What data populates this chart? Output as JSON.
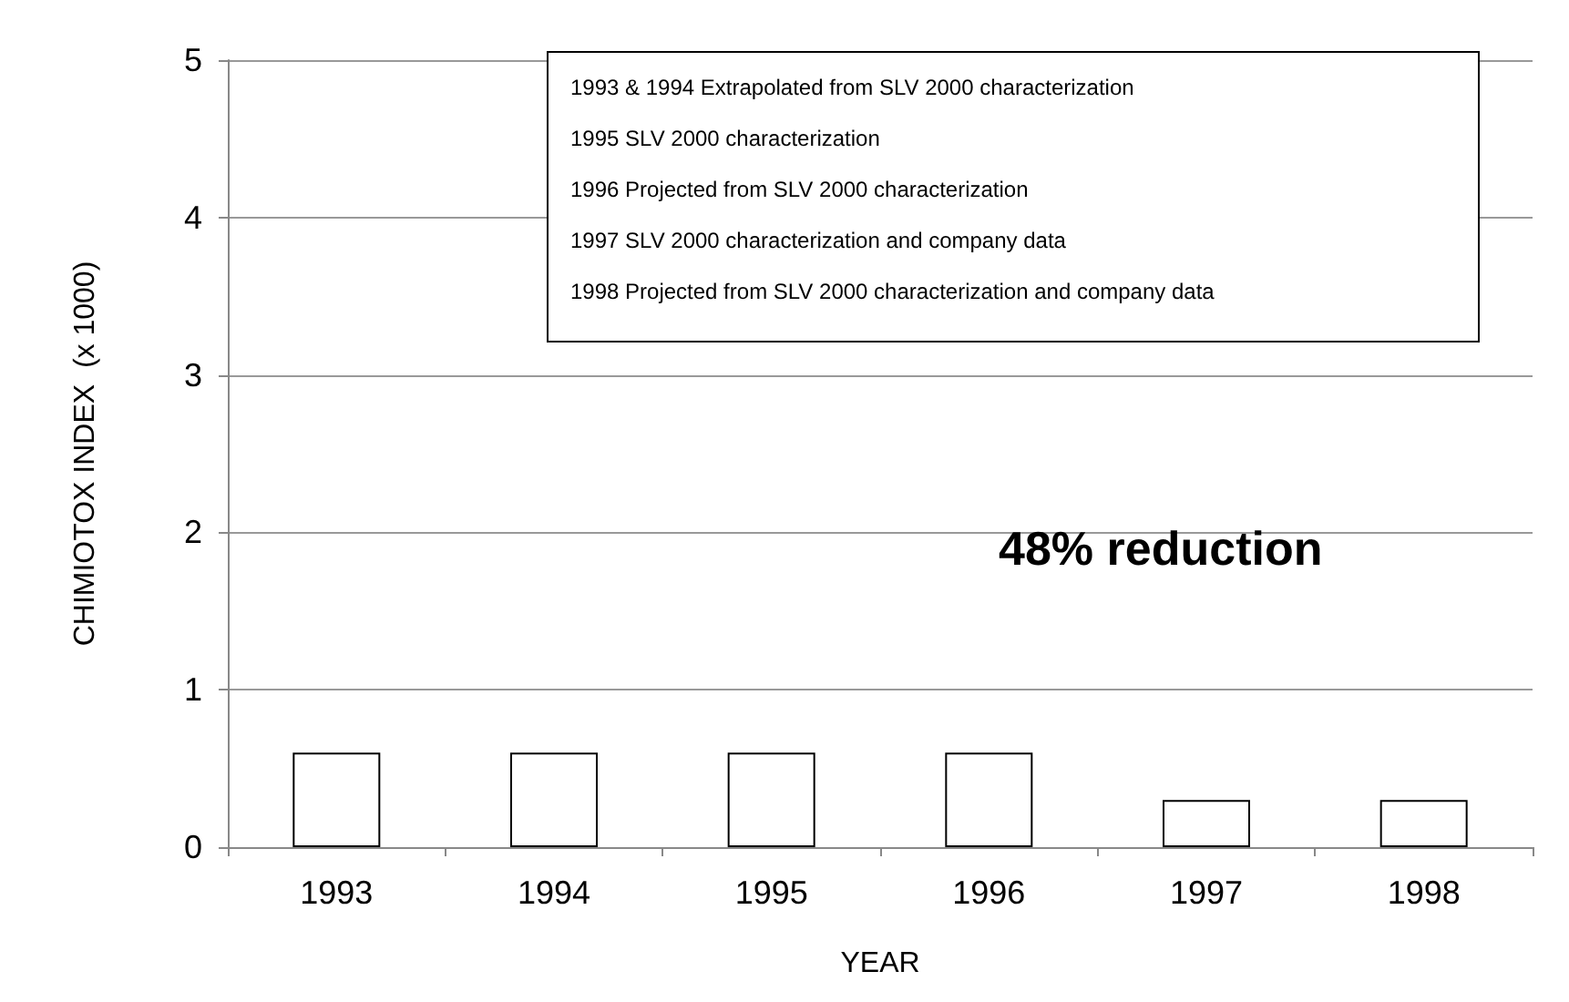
{
  "chart_data": {
    "type": "bar",
    "xlabel": "YEAR",
    "ylabel": "CHIMIOTOX INDEX  (x 1000)",
    "categories": [
      "1993",
      "1994",
      "1995",
      "1996",
      "1997",
      "1998"
    ],
    "values": [
      0.6,
      0.6,
      0.6,
      0.6,
      0.3,
      0.3
    ],
    "color": "#ffffff",
    "ylim": [
      0,
      5
    ],
    "yticks": [
      0,
      1,
      2,
      3,
      4,
      5
    ],
    "grid": "y",
    "annotations": [
      "1993 & 1994  Extrapolated from SLV 2000 characterization",
      "1995  SLV 2000 characterization",
      "1996  Projected from SLV 2000 characterization",
      "1997  SLV 2000 characterization and company data",
      "1998  Projected from SLV 2000 characterization and company data",
      "48% reduction"
    ]
  }
}
